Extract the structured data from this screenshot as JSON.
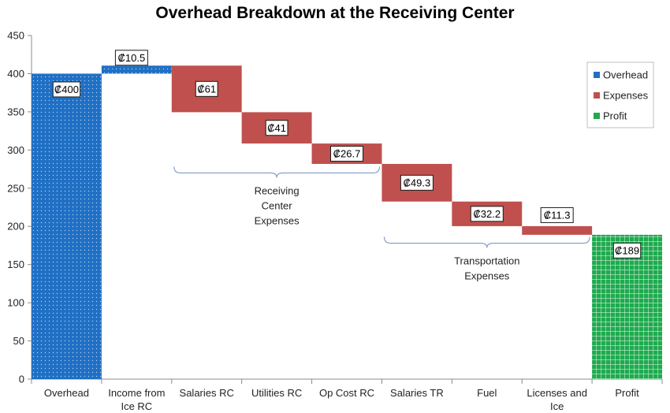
{
  "chart_data": {
    "type": "bar",
    "subtype": "waterfall",
    "title": "Overhead Breakdown at the Receiving Center",
    "xlabel": "",
    "ylabel": "",
    "ylim": [
      0,
      450
    ],
    "yticks": [
      0,
      50,
      100,
      150,
      200,
      250,
      300,
      350,
      400,
      450
    ],
    "grid": false,
    "legend_position": "right",
    "currency": "₡",
    "categories": [
      "Overhead",
      "Income from Ice RC",
      "Salaries RC",
      "Utilities RC",
      "Op Cost RC",
      "Salaries TR",
      "Fuel",
      "Licenses and Ice",
      "Profit"
    ],
    "category_lines": [
      [
        "Overhead"
      ],
      [
        "Income from",
        "Ice RC"
      ],
      [
        "Salaries RC"
      ],
      [
        "Utilities RC"
      ],
      [
        "Op Cost RC"
      ],
      [
        "Salaries TR"
      ],
      [
        "Fuel"
      ],
      [
        "Licenses and",
        "Ice"
      ],
      [
        "Profit"
      ]
    ],
    "bars": [
      {
        "category": "Overhead",
        "start": 0,
        "end": 400,
        "series": "Overhead",
        "label": "₡400"
      },
      {
        "category": "Income from Ice RC",
        "start": 400,
        "end": 410.5,
        "series": "Overhead",
        "label": "₡10.5"
      },
      {
        "category": "Salaries RC",
        "start": 410.5,
        "end": 349.5,
        "series": "Expenses",
        "label": "₡61"
      },
      {
        "category": "Utilities RC",
        "start": 349.5,
        "end": 308.5,
        "series": "Expenses",
        "label": "₡41"
      },
      {
        "category": "Op Cost RC",
        "start": 308.5,
        "end": 281.8,
        "series": "Expenses",
        "label": "₡26.7"
      },
      {
        "category": "Salaries TR",
        "start": 281.8,
        "end": 232.5,
        "series": "Expenses",
        "label": "₡49.3"
      },
      {
        "category": "Fuel",
        "start": 232.5,
        "end": 200.3,
        "series": "Expenses",
        "label": "₡32.2"
      },
      {
        "category": "Licenses and Ice",
        "start": 200.3,
        "end": 189,
        "series": "Expenses",
        "label": "₡11.3"
      },
      {
        "category": "Profit",
        "start": 0,
        "end": 189,
        "series": "Profit",
        "label": "₡189"
      }
    ],
    "series": [
      {
        "name": "Overhead",
        "color": "#1f6fc4"
      },
      {
        "name": "Expenses",
        "color": "#c0504d"
      },
      {
        "name": "Profit",
        "color": "#1faa4f"
      }
    ],
    "annotations": [
      {
        "lines": [
          "Receiving",
          "Center",
          "Expenses"
        ],
        "from_category": "Salaries RC",
        "to_category": "Op Cost RC",
        "y": 270
      },
      {
        "lines": [
          "Transportation",
          "Expenses"
        ],
        "from_category": "Salaries TR",
        "to_category": "Licenses and Ice",
        "y": 178
      }
    ]
  }
}
